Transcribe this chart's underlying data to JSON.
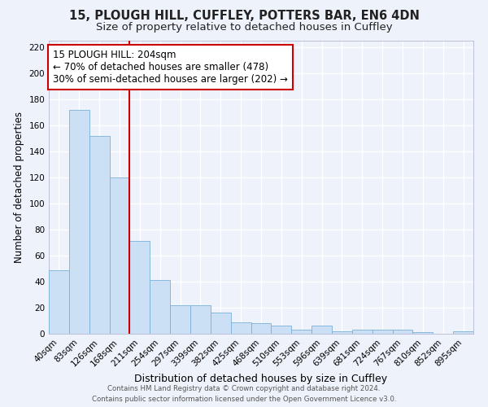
{
  "title1": "15, PLOUGH HILL, CUFFLEY, POTTERS BAR, EN6 4DN",
  "title2": "Size of property relative to detached houses in Cuffley",
  "xlabel": "Distribution of detached houses by size in Cuffley",
  "ylabel": "Number of detached properties",
  "bar_labels": [
    "40sqm",
    "83sqm",
    "126sqm",
    "168sqm",
    "211sqm",
    "254sqm",
    "297sqm",
    "339sqm",
    "382sqm",
    "425sqm",
    "468sqm",
    "510sqm",
    "553sqm",
    "596sqm",
    "639sqm",
    "681sqm",
    "724sqm",
    "767sqm",
    "810sqm",
    "852sqm",
    "895sqm"
  ],
  "bar_values": [
    49,
    172,
    152,
    120,
    71,
    41,
    22,
    22,
    16,
    9,
    8,
    6,
    3,
    6,
    2,
    3,
    3,
    3,
    1,
    0,
    2
  ],
  "bar_color": "#cce0f5",
  "bar_edgecolor": "#7ab0d8",
  "vline_color": "#cc0000",
  "annotation_text": "15 PLOUGH HILL: 204sqm\n← 70% of detached houses are smaller (478)\n30% of semi-detached houses are larger (202) →",
  "annotation_box_edgecolor": "#cc0000",
  "annotation_fontsize": 8.5,
  "ylim": [
    0,
    225
  ],
  "yticks": [
    0,
    20,
    40,
    60,
    80,
    100,
    120,
    140,
    160,
    180,
    200,
    220
  ],
  "background_color": "#eef2fa",
  "grid_color": "#ffffff",
  "footer1": "Contains HM Land Registry data © Crown copyright and database right 2024.",
  "footer2": "Contains public sector information licensed under the Open Government Licence v3.0.",
  "title1_fontsize": 10.5,
  "title2_fontsize": 9.5,
  "xlabel_fontsize": 9,
  "ylabel_fontsize": 8.5,
  "tick_fontsize": 7.5
}
